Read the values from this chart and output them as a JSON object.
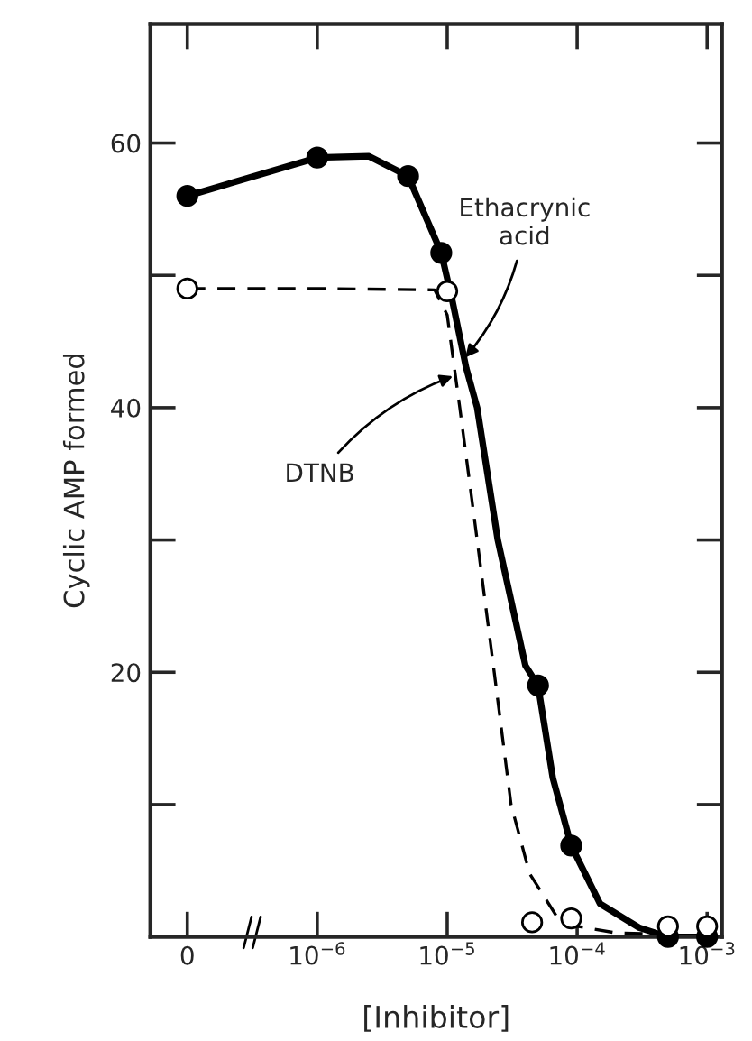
{
  "chart_data": {
    "type": "scatter",
    "xlabel": "[Inhibitor]",
    "ylabel": "Cyclic AMP formed",
    "log": "x",
    "xlim": [
      5.2e-08,
      0.0013
    ],
    "xticks": [
      {
        "value": 1e-07,
        "label": "0"
      },
      {
        "value": 1e-06,
        "label": "10$^{−6}$"
      },
      {
        "value": 1e-05,
        "label": "10$^{−5}$"
      },
      {
        "value": 0.0001,
        "label": "10$^{−4}$"
      },
      {
        "value": 0.001,
        "label": "10$^{−3}$"
      }
    ],
    "ylim": [
      0,
      69
    ],
    "yticks": [
      {
        "value": 10,
        "label": null
      },
      20,
      {
        "value": 30,
        "label": null
      },
      40,
      {
        "value": 50,
        "label": null
      },
      60
    ],
    "grid": false,
    "legend": false,
    "series": [
      {
        "type": "line",
        "color": "#000000",
        "line_style": "solid",
        "marker": "none",
        "x": [
          1e-07,
          1e-06,
          2.5e-06,
          5e-06,
          9e-06,
          1.1e-05,
          1.4e-05,
          1.7e-05,
          2.45e-05,
          4e-05,
          5e-05,
          6.5e-05,
          9e-05,
          0.00015,
          0.0003,
          0.0005,
          0.001
        ],
        "values": [
          56,
          58.9,
          59,
          57.5,
          51.7,
          48,
          43,
          40,
          30,
          20.5,
          19,
          12,
          6.9,
          2.5,
          0.7,
          0,
          0
        ]
      },
      {
        "color": "#000000",
        "marker": "circle",
        "x": [
          1e-07,
          1e-06,
          5e-06,
          9e-06,
          5e-05,
          9e-05,
          0.0005,
          0.001
        ],
        "values": [
          56,
          58.9,
          57.5,
          51.7,
          19,
          6.9,
          0,
          0
        ]
      },
      {
        "type": "line",
        "color": "#000000",
        "line_style": "dashed",
        "marker": "none",
        "x": [
          1e-07,
          1e-06,
          8e-06,
          1e-05,
          1.25e-05,
          1.7e-05,
          2.3e-05,
          3.1e-05,
          4.3e-05,
          7e-05,
          0.0001,
          0.0002,
          0.0005
        ],
        "values": [
          49,
          49,
          48.9,
          47,
          40,
          30,
          20,
          10,
          4.8,
          1.5,
          0.8,
          0.3,
          0.2
        ]
      },
      {
        "color": "#ffffff",
        "marker": "circle",
        "x": [
          1e-07,
          1e-05,
          4.5e-05,
          9e-05,
          0.0005,
          0.001
        ],
        "values": [
          49,
          48.8,
          1.1,
          1.4,
          0.8,
          0.8
        ]
      }
    ],
    "annotations": [
      {
        "text": "Ethacrynic\nacid",
        "x": 1.3e-05,
        "y": 43.5
      },
      {
        "text": "DTNB",
        "x": 1.2e-05,
        "y": 42.5
      }
    ]
  }
}
